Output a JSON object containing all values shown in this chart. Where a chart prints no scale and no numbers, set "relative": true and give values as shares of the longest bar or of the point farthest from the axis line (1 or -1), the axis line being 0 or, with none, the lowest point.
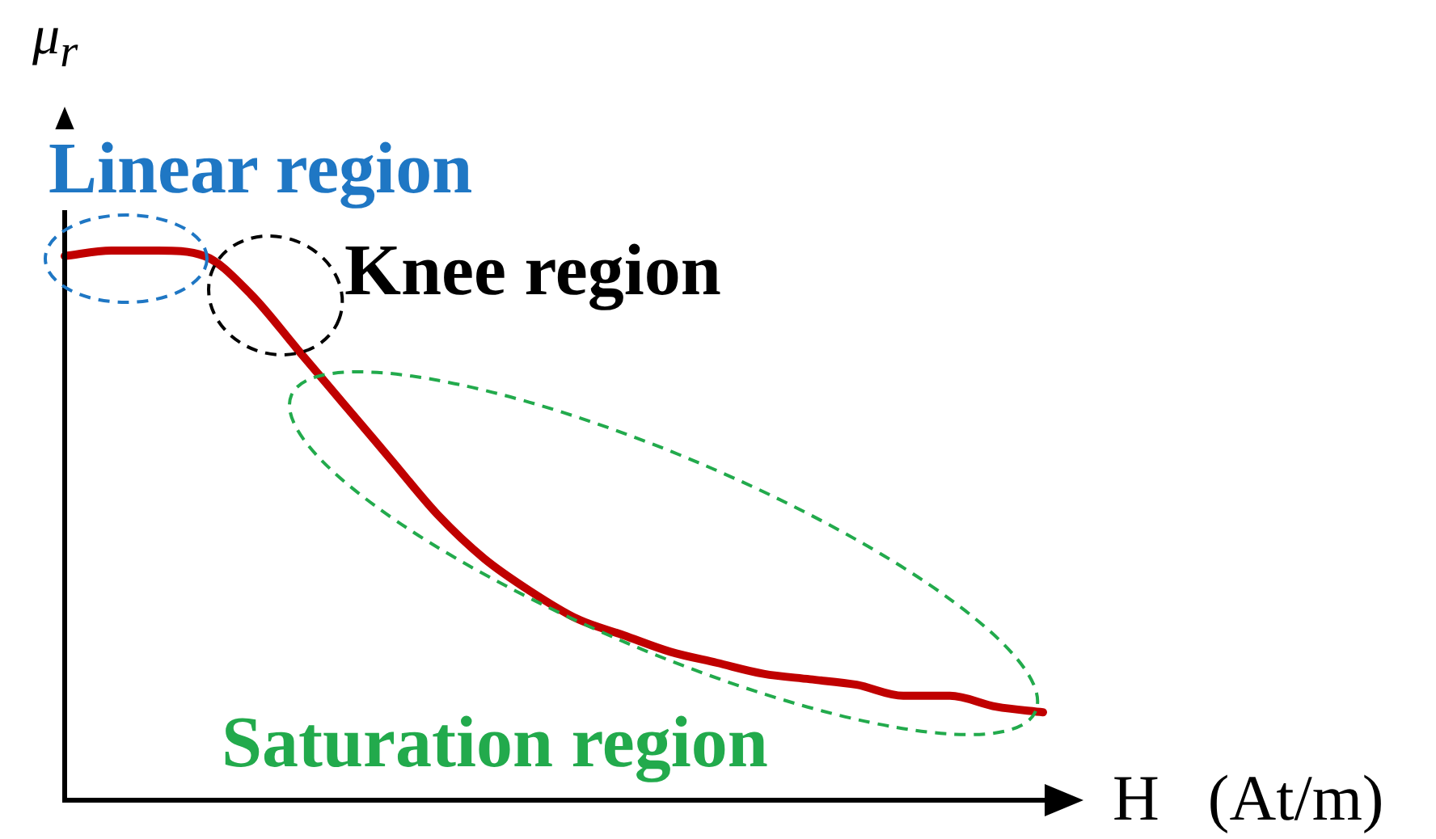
{
  "chart_data": {
    "type": "line",
    "relative": true,
    "tick_labels": false,
    "legend": false,
    "marker": "none",
    "line_style": "solid",
    "ylabel": "μ$_{r}$",
    "xlabel": "H   (At/m)",
    "annotations": [
      "Linear region",
      "Knee region",
      "Saturation region"
    ],
    "categories": [
      null,
      null,
      null,
      null,
      null,
      null,
      null,
      null,
      null,
      null,
      null,
      null,
      null,
      null,
      null,
      null,
      null,
      null,
      null,
      null,
      null,
      null
    ],
    "series": [
      {
        "color": "#c00000",
        "values": [
          0.99,
          1,
          1,
          0.99,
          0.92,
          0.82,
          0.72,
          0.62,
          0.52,
          0.44,
          0.38,
          0.33,
          0.3,
          0.27,
          0.25,
          0.23,
          0.22,
          0.21,
          0.19,
          0.19,
          0.17,
          0.16
        ]
      }
    ]
  }
}
